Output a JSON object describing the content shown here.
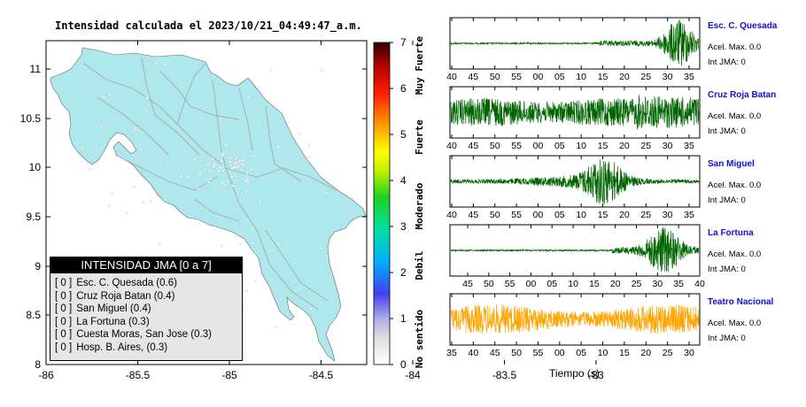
{
  "map": {
    "title": "Intensidad calculada el 2023/10/21_04:49:47_a.m.",
    "x_ticks": [
      "-86",
      "-85.5",
      "-85",
      "-84.5",
      "-84",
      "-83.5",
      "-83"
    ],
    "y_ticks": [
      "11",
      "10.5",
      "10",
      "9.5",
      "9",
      "8.5",
      "8"
    ],
    "land_color": "#aee8ec",
    "sea_color": "#ffffff"
  },
  "legend": {
    "title": "INTENSIDAD JMA [0 a 7]",
    "items": [
      {
        "level": "[ 0 ]",
        "station": "Esc. C. Quesada (0.6)"
      },
      {
        "level": "[ 0 ]",
        "station": "Cruz Roja Batan (0.4)"
      },
      {
        "level": "[ 0 ]",
        "station": "San Miguel (0.4)"
      },
      {
        "level": "[ 0 ]",
        "station": "La Fortuna (0.3)"
      },
      {
        "level": "[ 0 ]",
        "station": "Cuesta Moras, San Jose (0.3)"
      },
      {
        "level": "[ 0 ]",
        "station": "Hosp. B. Aires, (0.3)"
      }
    ]
  },
  "scale": {
    "ticks": [
      "0",
      "1",
      "2",
      "3",
      "4",
      "5",
      "6",
      "7"
    ],
    "labels": [
      "No sentido",
      "Debil",
      "Moderado",
      "Fuerte",
      "Muy Fuerte"
    ]
  },
  "chart_data": [
    {
      "type": "line",
      "station": "Esc. C. Quesada",
      "x_ticks": [
        "40",
        "45",
        "50",
        "55",
        "00",
        "05",
        "10",
        "15",
        "20",
        "25",
        "30",
        "35"
      ],
      "accel_label": "Acel. Max. 0.0",
      "int_label": "Int JMA: 0",
      "color": "#006400"
    },
    {
      "type": "line",
      "station": "Cruz Roja Batan",
      "x_ticks": [
        "40",
        "45",
        "50",
        "55",
        "00",
        "05",
        "10",
        "15",
        "20",
        "25",
        "30",
        "35"
      ],
      "accel_label": "Acel. Max. 0.0",
      "int_label": "Int JMA: 0",
      "color": "#006400"
    },
    {
      "type": "line",
      "station": "San Miguel",
      "x_ticks": [
        "40",
        "45",
        "50",
        "55",
        "00",
        "05",
        "10",
        "15",
        "20",
        "25",
        "30",
        "35"
      ],
      "accel_label": "Acel. Max. 0.0",
      "int_label": "Int JMA: 0",
      "color": "#006400"
    },
    {
      "type": "line",
      "station": "La Fortuna",
      "x_ticks": [
        "45",
        "50",
        "55",
        "00",
        "05",
        "10",
        "15",
        "20",
        "25",
        "30",
        "35",
        "40"
      ],
      "accel_label": "Acel. Max. 0.0",
      "int_label": "Int JMA: 0",
      "color": "#006400"
    },
    {
      "type": "line",
      "station": "Teatro Nacional",
      "x_ticks": [
        "35",
        "40",
        "45",
        "50",
        "55",
        "00",
        "05",
        "10",
        "15",
        "20",
        "25",
        "30"
      ],
      "accel_label": "Acel. Max. 0.0",
      "int_label": "Int JMA: 0",
      "color": "#ffa500",
      "xlabel": "Tiempo (s)"
    }
  ]
}
